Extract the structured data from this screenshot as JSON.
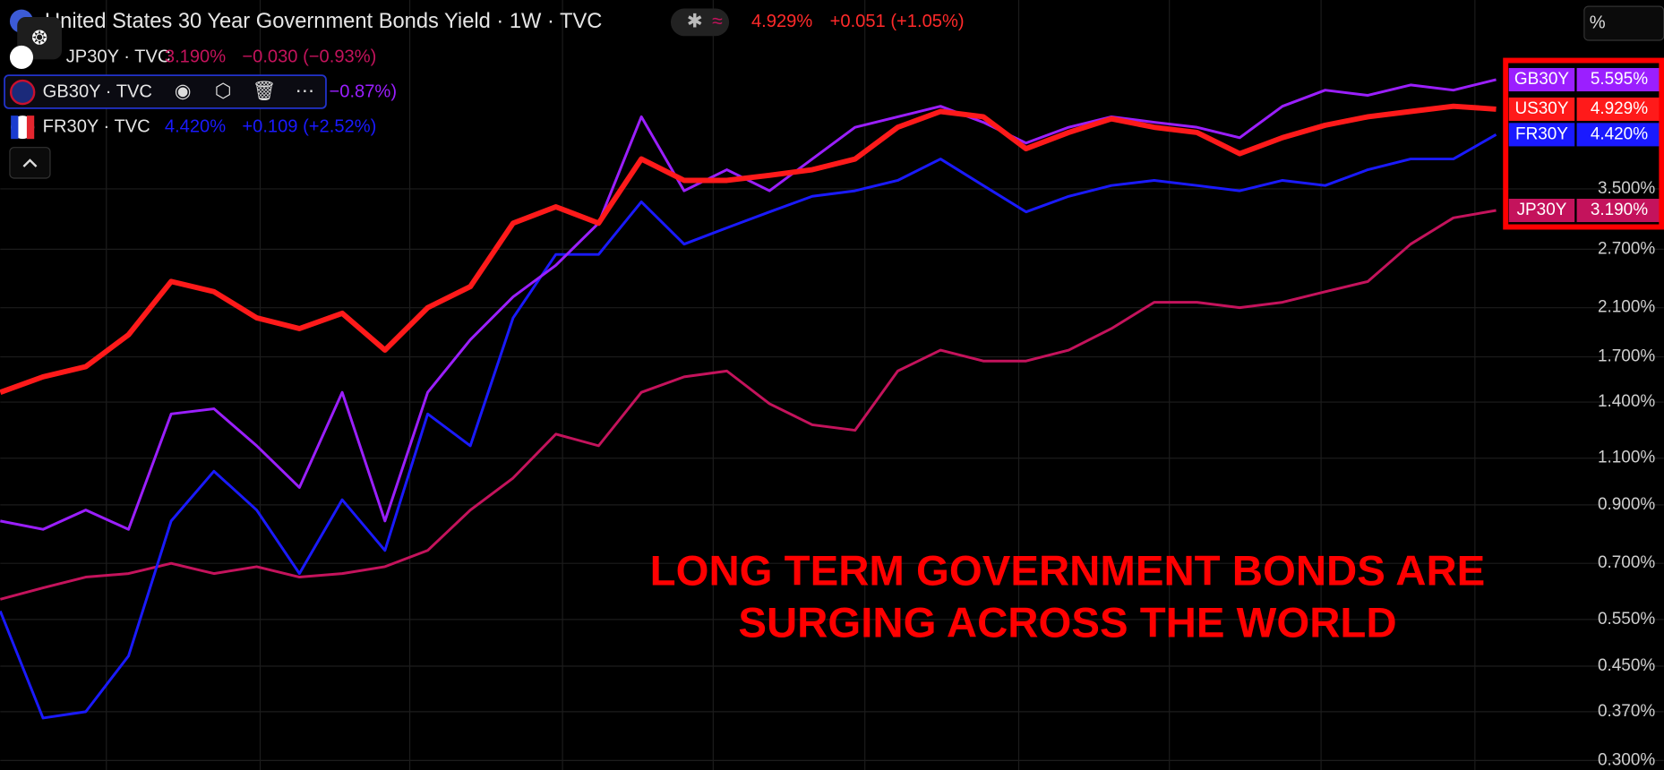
{
  "chart_data": {
    "type": "line",
    "log_scale": true,
    "grid": true,
    "categories": [
      null,
      null,
      null,
      null,
      null,
      null,
      null,
      null,
      null,
      null,
      null,
      null,
      null,
      null,
      null,
      null,
      null,
      null,
      null,
      null,
      null,
      null,
      null,
      null,
      null,
      null,
      null,
      null,
      null,
      null,
      null,
      null,
      null,
      null,
      null,
      null
    ],
    "ylim": [
      0.288,
      7.88
    ],
    "yticks": [
      {
        "value": 3.5,
        "label": "3.500%"
      },
      {
        "value": 2.7,
        "label": "2.700%"
      },
      {
        "value": 2.1,
        "label": "2.100%"
      },
      {
        "value": 1.7,
        "label": "1.700%"
      },
      {
        "value": 1.4,
        "label": "1.400%"
      },
      {
        "value": 1.1,
        "label": "1.100%"
      },
      {
        "value": 0.9,
        "label": "0.900%"
      },
      {
        "value": 0.7,
        "label": "0.700%"
      },
      {
        "value": 0.55,
        "label": "0.550%"
      },
      {
        "value": 0.45,
        "label": "0.450%"
      },
      {
        "value": 0.37,
        "label": "0.370%"
      },
      {
        "value": 0.3,
        "label": "0.300%"
      }
    ],
    "series": [
      {
        "name": "US30Y",
        "color": "#ff1a1a",
        "last_label": "4.929%",
        "values": [
          1.46,
          1.56,
          1.63,
          1.87,
          2.35,
          2.25,
          2.01,
          1.92,
          2.05,
          1.75,
          2.1,
          2.3,
          3.02,
          3.24,
          3.02,
          3.98,
          3.63,
          3.63,
          3.71,
          3.8,
          3.98,
          4.56,
          4.88,
          4.77,
          4.16,
          4.46,
          4.73,
          4.56,
          4.46,
          4.07,
          4.36,
          4.6,
          4.77,
          4.88,
          4.99,
          4.929
        ]
      },
      {
        "name": "GB30Y",
        "color": "#9b1fff",
        "last_label": "5.595%",
        "values": [
          0.84,
          0.81,
          0.88,
          0.81,
          1.33,
          1.36,
          1.16,
          0.97,
          1.46,
          0.84,
          1.46,
          1.83,
          2.2,
          2.52,
          3.02,
          4.77,
          3.47,
          3.8,
          3.47,
          3.98,
          4.56,
          4.77,
          4.99,
          4.66,
          4.26,
          4.56,
          4.77,
          4.66,
          4.56,
          4.36,
          4.99,
          5.35,
          5.23,
          5.47,
          5.35,
          5.595
        ]
      },
      {
        "name": "FR30Y",
        "color": "#1a1aff",
        "last_label": "4.420%",
        "values": [
          0.57,
          0.36,
          0.37,
          0.47,
          0.84,
          1.04,
          0.88,
          0.67,
          0.92,
          0.74,
          1.33,
          1.16,
          2.01,
          2.64,
          2.64,
          3.31,
          2.76,
          2.96,
          3.17,
          3.39,
          3.47,
          3.63,
          3.98,
          3.55,
          3.17,
          3.39,
          3.55,
          3.63,
          3.55,
          3.47,
          3.63,
          3.55,
          3.8,
          3.98,
          3.98,
          4.42
        ]
      },
      {
        "name": "JP30Y",
        "color": "#c4135c",
        "last_label": "3.190%",
        "values": [
          0.6,
          0.63,
          0.66,
          0.67,
          0.7,
          0.67,
          0.69,
          0.66,
          0.67,
          0.69,
          0.74,
          0.88,
          1.01,
          1.22,
          1.16,
          1.46,
          1.56,
          1.6,
          1.39,
          1.27,
          1.24,
          1.6,
          1.75,
          1.67,
          1.67,
          1.75,
          1.92,
          2.15,
          2.15,
          2.1,
          2.15,
          2.25,
          2.35,
          2.76,
          3.09,
          3.19
        ]
      }
    ],
    "legend": [
      {
        "label": "United States 30 Year Government Bonds Yield · 1W · TVC",
        "price": "4.929%",
        "change": "+0.051 (+1.05%)"
      },
      {
        "label": "JP30Y · TVC",
        "price": "3.190%",
        "change": "−0.030 (−0.93%)"
      },
      {
        "label": "GB30Y · TVC",
        "change": "−0.87%)"
      },
      {
        "label": "FR30Y · TVC",
        "price": "4.420%",
        "change": "+0.109 (+2.52%)"
      }
    ],
    "annotation": [
      "LONG TERM GOVERNMENT BONDS ARE",
      "SURGING ACROSS THE WORLD"
    ],
    "unit_button": "%"
  }
}
